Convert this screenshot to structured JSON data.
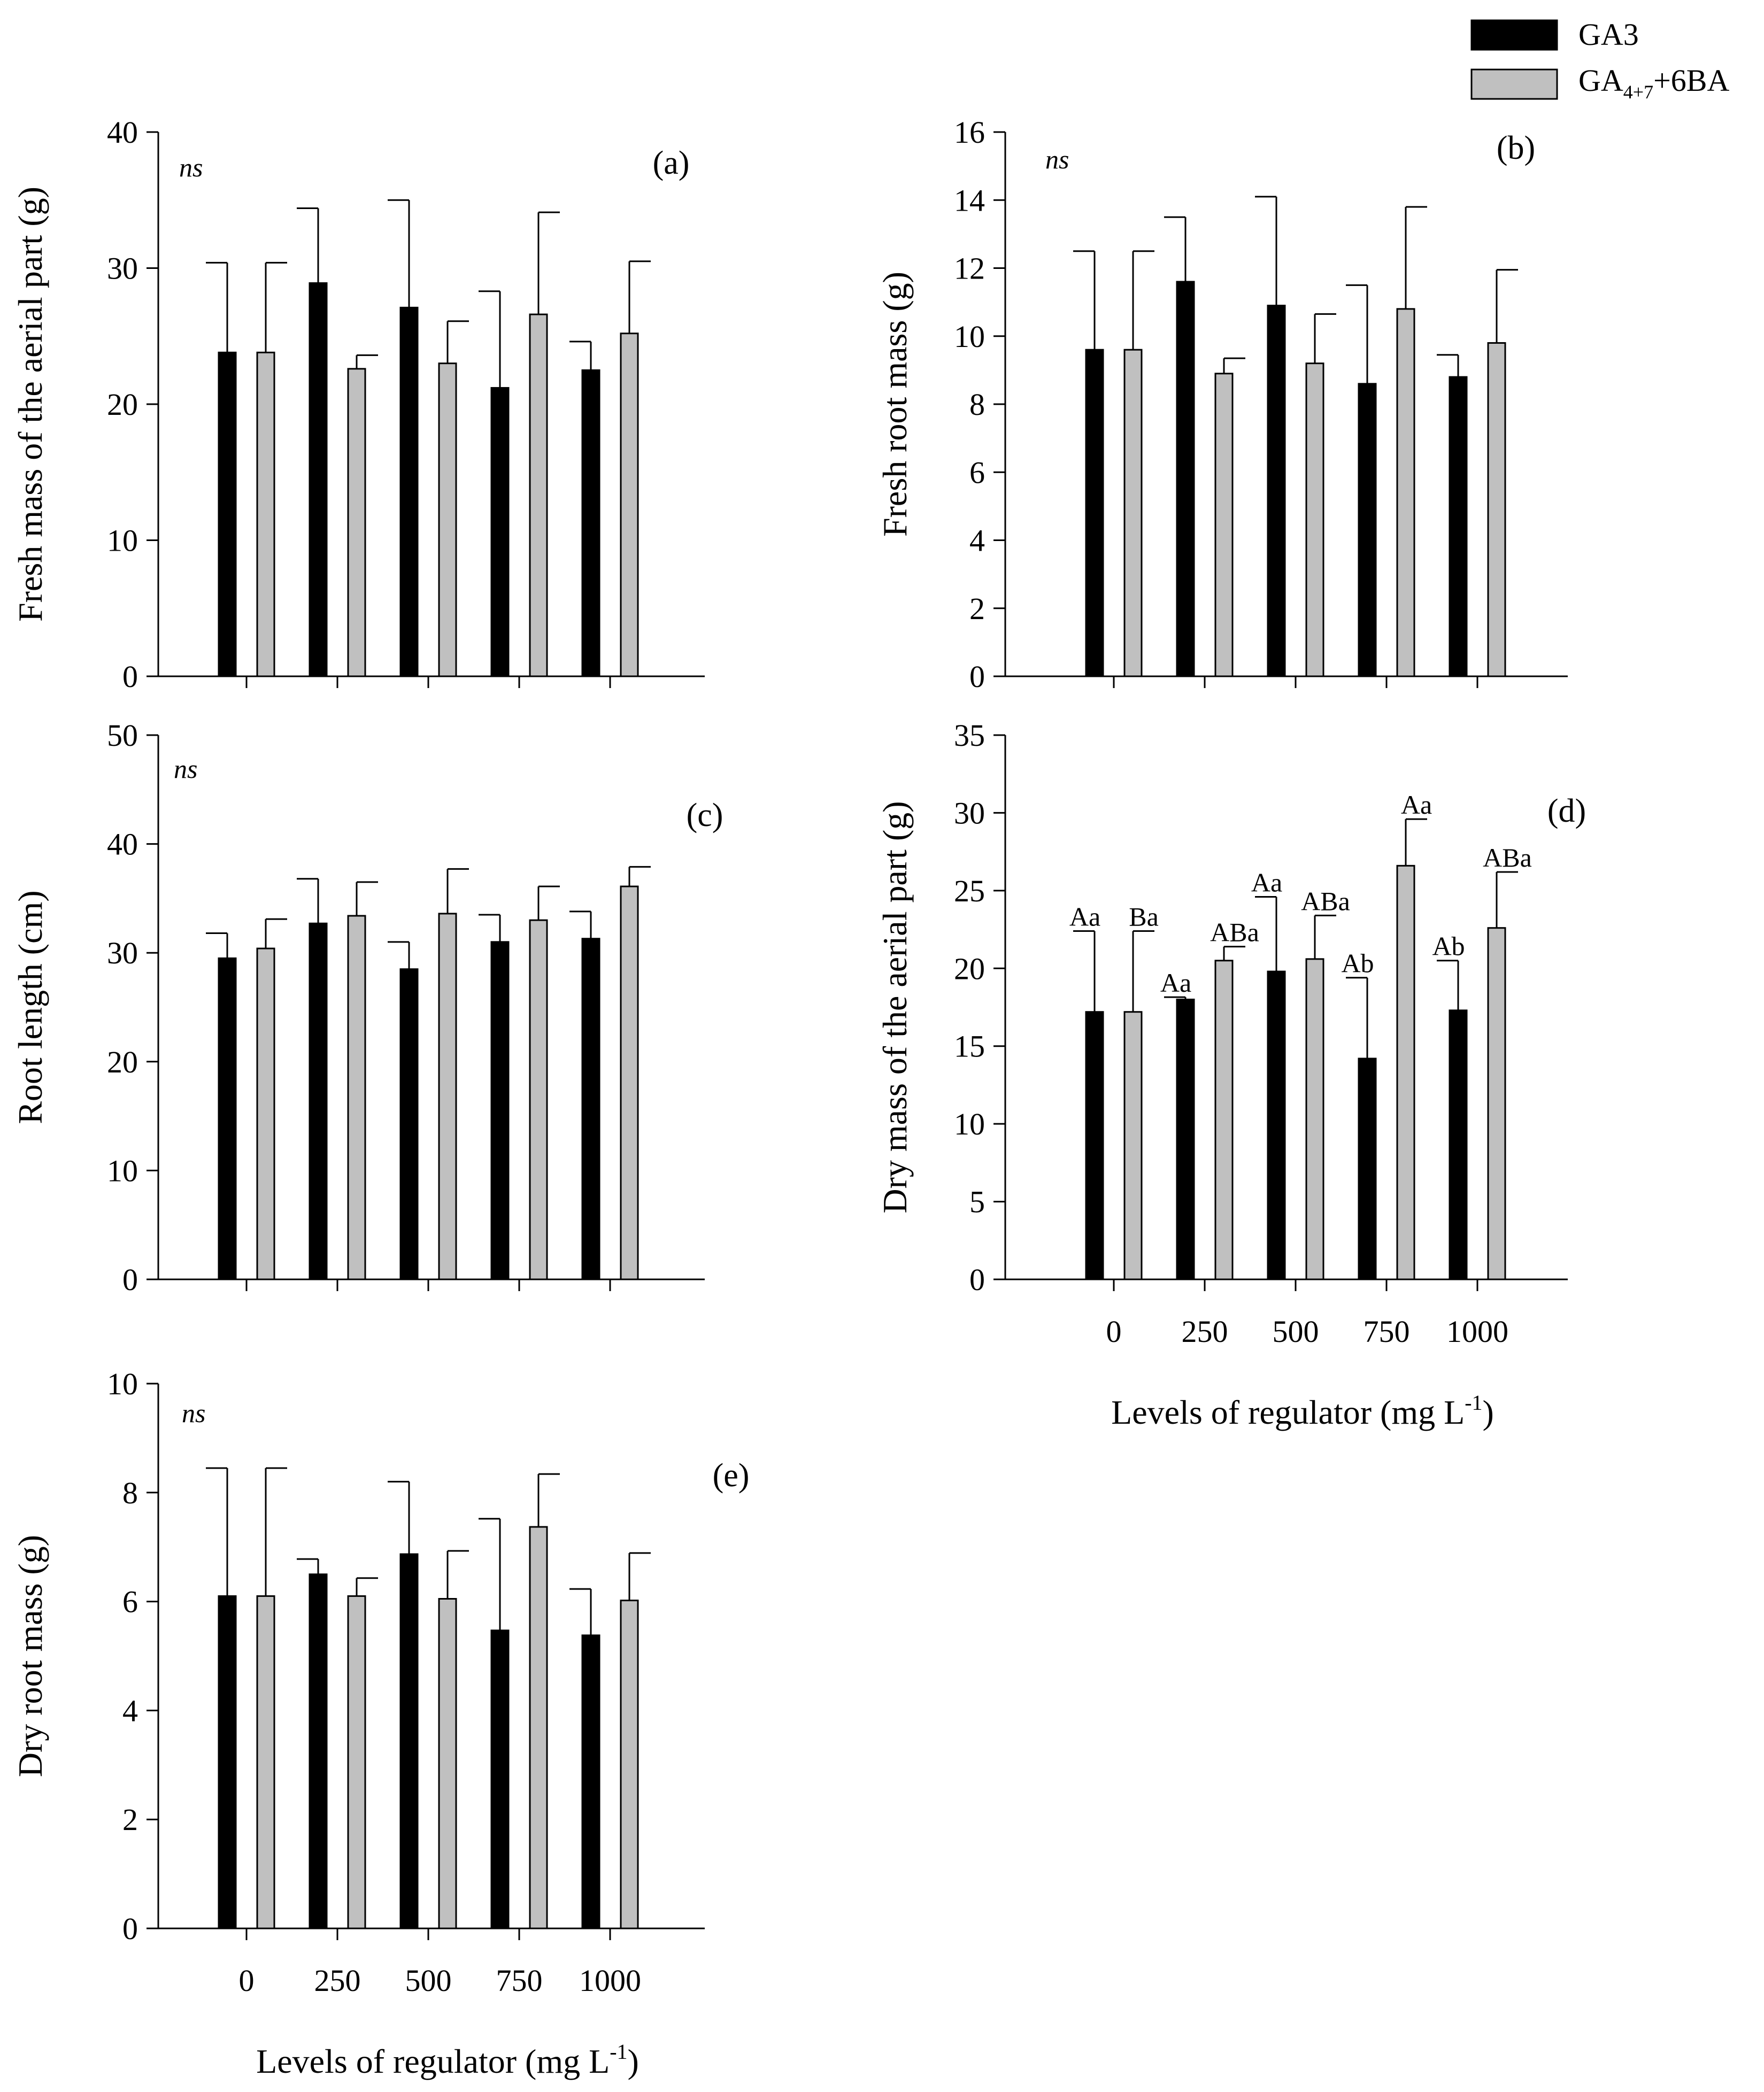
{
  "legend": {
    "placement": "top-right",
    "entries": [
      {
        "name": "GA3",
        "color": "#000000"
      },
      {
        "name_main": "GA",
        "name_sub": "4+7",
        "name_rest": "+6BA",
        "color": "#c0c0c0"
      }
    ]
  },
  "colors": {
    "ga3": "#000000",
    "ga47": "#c0c0c0",
    "axis": "#000000"
  },
  "chart_data": [
    {
      "id": "a",
      "type": "bar",
      "panel_label": "(a)",
      "annotation": "ns",
      "ylabel": "Fresh mass of the aerial part (g)",
      "ylim": [
        0,
        40
      ],
      "yticks": [
        0,
        10,
        20,
        30,
        40
      ],
      "categories": [
        "0",
        "250",
        "500",
        "750",
        "1000"
      ],
      "show_xticklabels": false,
      "xlabel": "",
      "series": [
        {
          "name": "GA3",
          "values": [
            23.8,
            28.9,
            27.1,
            21.2,
            22.5
          ],
          "errors": [
            6.6,
            5.5,
            7.9,
            7.1,
            2.1
          ]
        },
        {
          "name": "GA4+7+6BA",
          "values": [
            23.8,
            22.6,
            23.0,
            26.6,
            25.2
          ],
          "errors": [
            6.6,
            1.0,
            3.1,
            7.5,
            5.3
          ]
        }
      ]
    },
    {
      "id": "b",
      "type": "bar",
      "panel_label": "(b)",
      "annotation": "ns",
      "ylabel": "Fresh root mass (g)",
      "ylim": [
        0,
        16
      ],
      "yticks": [
        0,
        2,
        4,
        6,
        8,
        10,
        12,
        14,
        16
      ],
      "categories": [
        "0",
        "250",
        "500",
        "750",
        "1000"
      ],
      "show_xticklabels": false,
      "xlabel": "",
      "series": [
        {
          "name": "GA3",
          "values": [
            9.6,
            11.6,
            10.9,
            8.6,
            8.8
          ],
          "errors": [
            2.9,
            1.9,
            3.2,
            2.9,
            0.65
          ]
        },
        {
          "name": "GA4+7+6BA",
          "values": [
            9.6,
            8.9,
            9.2,
            10.8,
            9.8
          ],
          "errors": [
            2.9,
            0.45,
            1.45,
            3.0,
            2.15
          ]
        }
      ]
    },
    {
      "id": "c",
      "type": "bar",
      "panel_label": "(c)",
      "annotation": "ns",
      "ylabel": "Root length  (cm)",
      "ylim": [
        0,
        50
      ],
      "yticks": [
        0,
        10,
        20,
        30,
        40,
        50
      ],
      "categories": [
        "0",
        "250",
        "500",
        "750",
        "1000"
      ],
      "show_xticklabels": false,
      "xlabel": "",
      "series": [
        {
          "name": "GA3",
          "values": [
            29.5,
            32.7,
            28.5,
            31.0,
            31.3
          ],
          "errors": [
            2.3,
            4.1,
            2.5,
            2.5,
            2.5
          ]
        },
        {
          "name": "GA4+7+6BA",
          "values": [
            30.4,
            33.4,
            33.6,
            33.0,
            36.1
          ],
          "errors": [
            2.7,
            3.1,
            4.1,
            3.1,
            1.8
          ]
        }
      ]
    },
    {
      "id": "d",
      "type": "bar",
      "panel_label": "(d)",
      "annotation": "",
      "ylabel": "Dry mass of the aerial part  (g)",
      "ylim": [
        0,
        35
      ],
      "yticks": [
        0,
        5,
        10,
        15,
        20,
        25,
        30,
        35
      ],
      "categories": [
        "0",
        "250",
        "500",
        "750",
        "1000"
      ],
      "show_xticklabels": true,
      "xlabel_main": "Levels of regulator (mg L",
      "xlabel_sup": "-1",
      "xlabel_end": ")",
      "series": [
        {
          "name": "GA3",
          "values": [
            17.2,
            18.0,
            19.8,
            14.2,
            17.3
          ],
          "errors": [
            5.2,
            0.15,
            4.8,
            5.2,
            3.2
          ],
          "letters": [
            "Aa",
            "Aa",
            "Aa",
            "Ab",
            "Ab"
          ]
        },
        {
          "name": "GA4+7+6BA",
          "values": [
            17.2,
            20.5,
            20.6,
            26.6,
            22.6
          ],
          "errors": [
            5.2,
            0.9,
            2.8,
            3.0,
            3.6
          ],
          "letters": [
            "Ba",
            "ABa",
            "ABa",
            "Aa",
            "ABa"
          ]
        }
      ]
    },
    {
      "id": "e",
      "type": "bar",
      "panel_label": "(e)",
      "annotation": "ns",
      "ylabel": "Dry root mass (g)",
      "ylim": [
        0,
        10
      ],
      "yticks": [
        0,
        2,
        4,
        6,
        8,
        10
      ],
      "categories": [
        "0",
        "250",
        "500",
        "750",
        "1000"
      ],
      "show_xticklabels": true,
      "xlabel_main": "Levels of regulator (mg L",
      "xlabel_sup": "-1",
      "xlabel_end": ")",
      "series": [
        {
          "name": "GA3",
          "values": [
            6.1,
            6.5,
            6.87,
            5.47,
            5.38
          ],
          "errors": [
            2.35,
            0.28,
            1.33,
            2.05,
            0.85
          ]
        },
        {
          "name": "GA4+7+6BA",
          "values": [
            6.1,
            6.1,
            6.05,
            7.37,
            6.02
          ],
          "errors": [
            2.35,
            0.33,
            0.88,
            0.97,
            0.87
          ]
        }
      ]
    }
  ]
}
